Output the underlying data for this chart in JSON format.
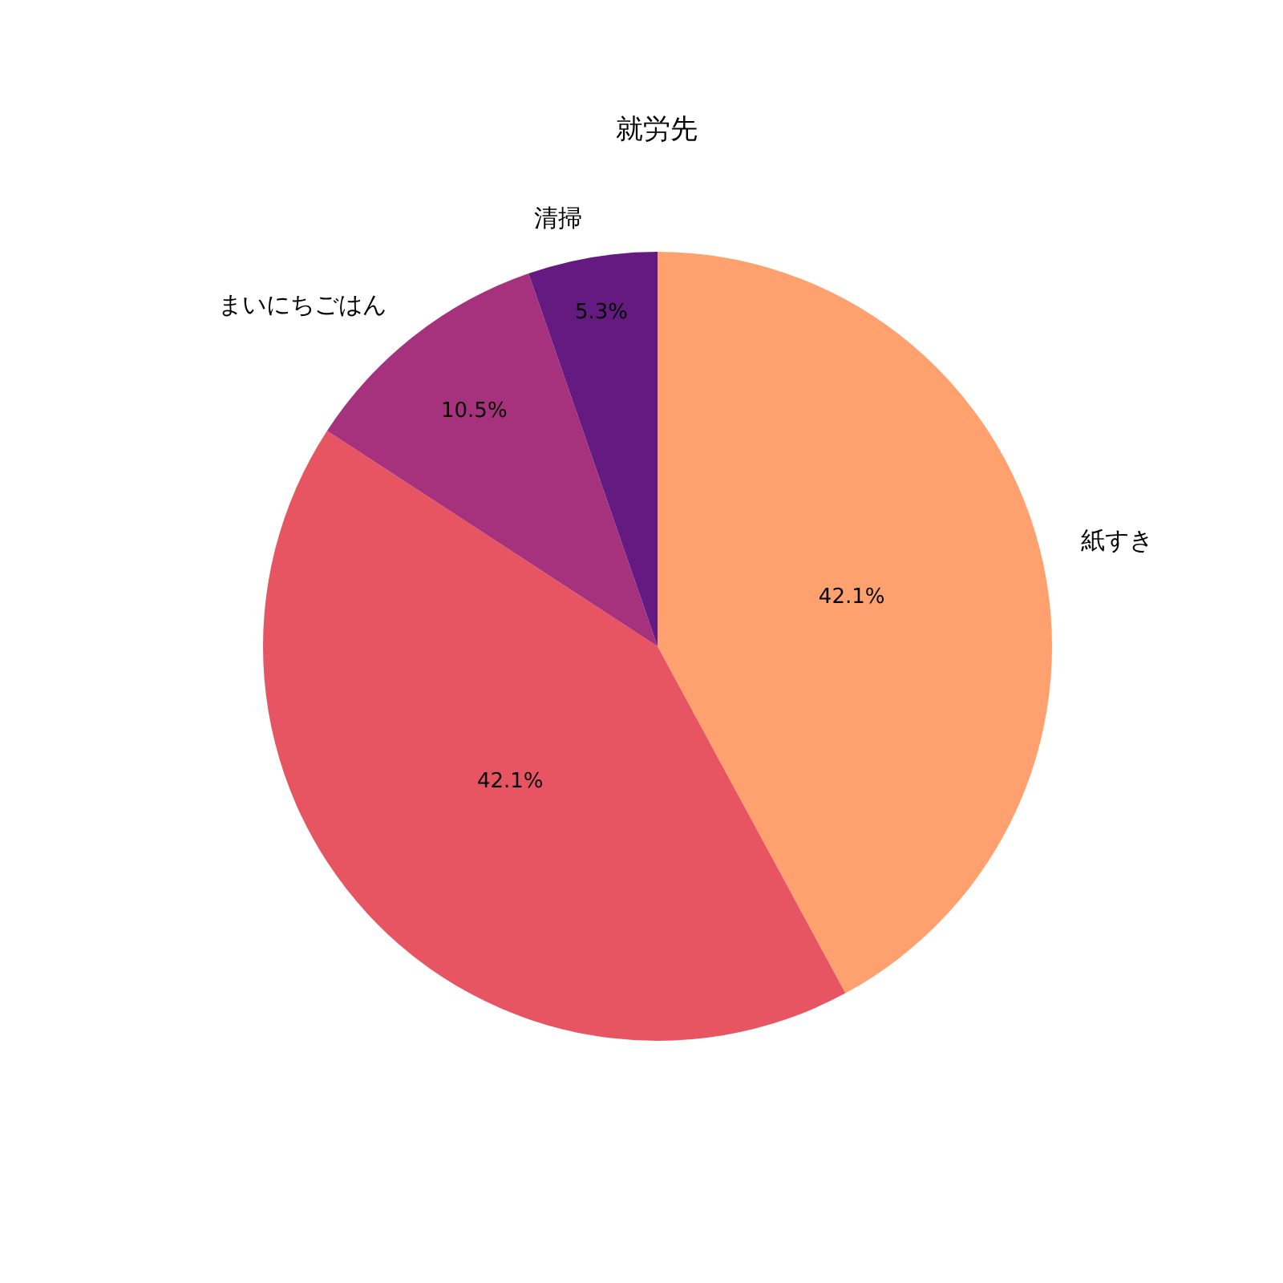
{
  "chart_data": {
    "type": "pie",
    "title": "就労先",
    "categories": [
      "紙すき",
      null,
      "まいにちごはん",
      "清掃"
    ],
    "values": [
      42.1,
      42.1,
      10.5,
      5.3
    ],
    "colors": [
      "#fea16e",
      "#e75563",
      "#a6327d",
      "#641a80"
    ],
    "value_labels": [
      "42.1%",
      "42.1%",
      "10.5%",
      "5.3%"
    ],
    "legend": false
  }
}
